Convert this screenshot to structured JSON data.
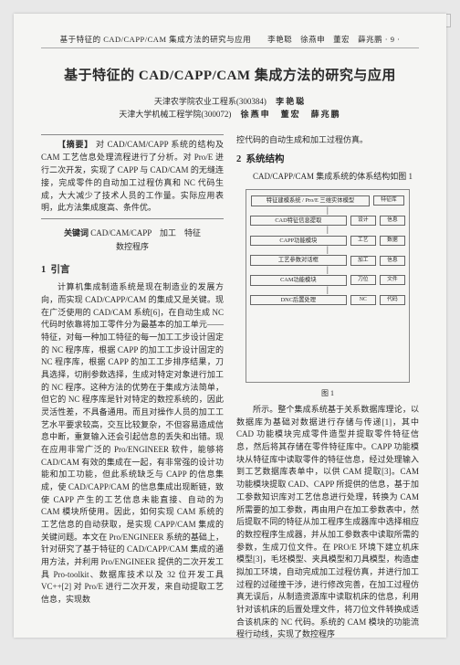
{
  "watermark": "维普资讯 http://www.cqvip.com",
  "running_head": "基于特征的 CAD/CAPP/CAM 集成方法的研究与应用　　李艳聪　徐燕申　董宏　薛兆鹏 · 9 ·",
  "title": "基于特征的 CAD/CAPP/CAM 集成方法的研究与应用",
  "affil": {
    "line1_inst": "天津农学院农业工程系(300384)",
    "line1_name": "李艳聪",
    "line2_inst": "天津大学机械工程学院(300072)",
    "line2_names": "徐燕申　董宏　薛兆鹏"
  },
  "abstract": {
    "label": "【摘要】",
    "text": "对 CAD/CAM/CAPP 系统的结构及 CAM 工艺信息处理流程进行了分析。对 Pro/E 进行二次开发，实现了 CAPP 与 CAD/CAM 的无缝连接，完成零件的自动加工过程仿真和 NC 代码生成，大大减少了技术人员的工作量。实际应用表明，此方法集成度高、条件优。"
  },
  "keywords": {
    "label": "关键词",
    "line1": "CAD/CAM/CAPP　加工　特征",
    "line2": "数控程序"
  },
  "sec1": {
    "num": "1",
    "title": "引言"
  },
  "body_left": "计算机集成制造系统是现在制造业的发展方向，而实现 CAD/CAPP/CAM 的集成又是关键。现在广泛使用的 CAD/CAM 系统[6]，在自动生成 NC 代码时依靠将加工零件分为最基本的加工单元——特征，对每一种加工特征的每一加工工步设计固定的 NC 程序库，根据 CAPP 的加工工步设计固定的 NC 程序库，根据 CAPP 的加工工步排序结果，刀具选择，切削参数选择，生成对特定对象进行加工的 NC 程序。这种方法的优势在于集成方法简单，但它的 NC 程序库是针对特定的数控系统的，因此灵活性差，不具备通用。而且对操作人员的加工工艺水平要求较高，交互比较复杂，不但容易造成信息中断，重复输入还会引起信息的丢失和出错。现在应用非常广泛的 Pro/ENGINEER 软件，能够将 CAD/CAM 有效的集成在一起，有非常强的设计功能和加工功能，但此系统缺乏与 CAPP 的信息集成，使 CAD/CAPP/CAM 的信息集成出现断链，致使 CAPP 产生的工艺信息未能直接、自动的为 CAM 模块所使用。因此，如何实现 CAM 系统的工艺信息的自动获取，是实现 CAPP/CAM 集成的关键问题。本文在 Pro/ENGINEER 系统的基础上，针对研究了基于特征的 CAD/CAPP/CAM 集成的通用方法，并利用 Pro/ENGINEER 提供的二次开发工具 Pro-toolkit、数据库技术以及 32 位开发工具 VC++[2] 对 Pro/E 进行二次开发，来自动提取工艺信息，实现数",
  "right_top": "控代码的自动生成和加工过程仿真。",
  "sec2": {
    "num": "2",
    "title": "系统结构"
  },
  "sec2_lead": "CAD/CAPP/CAM 集成系统的体系结构如图 1",
  "diagram": {
    "rows": [
      {
        "main": "特征建模系统 / Pro/E 三维实体模型",
        "side": [
          "特征库"
        ]
      },
      {
        "main": "",
        "side": []
      },
      {
        "main": "CAD特征信息提取",
        "side": [
          "设计",
          "信息"
        ]
      },
      {
        "main": "",
        "side": []
      },
      {
        "main": "CAPP功能模块",
        "side": [
          "工艺",
          "数据"
        ]
      },
      {
        "main": "",
        "side": []
      },
      {
        "main": "工艺参数对话框",
        "side": [
          "加工",
          "信息"
        ]
      },
      {
        "main": "",
        "side": []
      },
      {
        "main": "CAM功能模块",
        "side": [
          "刀位",
          "文件"
        ]
      },
      {
        "main": "",
        "side": []
      },
      {
        "main": "DNC后置处理",
        "side": [
          "NC",
          "代码"
        ]
      }
    ],
    "caption": "图 1"
  },
  "body_right": "所示。整个集成系统基于关系数据库理论，以数据库为基础对数据进行存储与传递[1]，其中 CAD 功能模块完成零件造型并提取零件特征信息，然后将其存储在零件特征库中。CAPP 功能模块从特征库中读取零件的特征信息，经过处理输入到工艺数据库表单中，以供 CAM 提取[3]。CAM 功能模块提取 CAD、CAPP 所提供的信息，基于加工参数知识库对工艺信息进行处理，转换为 CAM 所需要的加工参数，再由用户在加工参数表中，然后提取不同的特征从加工程序生成器库中选择相应的数控程序生成器，并从加工参数表中读取所需的参数，生成刀位文件。在 PRO/E 环境下建立机床模型[3]，毛坯模型、夹具模型和刀具模型，构造虚拟加工环境，自动完成加工过程仿真，并进行加工过程的过碰撞干涉，进行修改完善，在加工过程仿真无误后，从制造资源库中读取机床的信息，利用针对该机床的后置处理文件，将刀位文件转换成适合该机床的 NC 代码。系统的 CAM 模块的功能流程行动线，实现了数控程序"
}
